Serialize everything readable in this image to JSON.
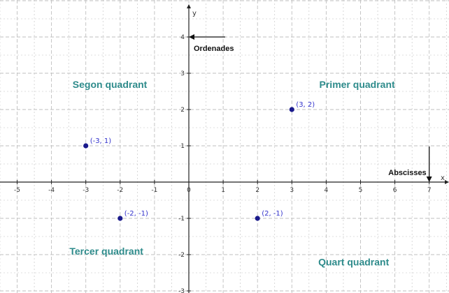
{
  "chart_data": {
    "type": "scatter",
    "xlim": [
      -5,
      7
    ],
    "ylim": [
      -3,
      4
    ],
    "grid": true,
    "x_ticks": [
      "-5",
      "-4",
      "-3",
      "-2",
      "-1",
      "0",
      "1",
      "2",
      "3",
      "4",
      "5",
      "6",
      "7"
    ],
    "y_ticks": [
      "-3",
      "-2",
      "-1",
      "1",
      "2",
      "3",
      "4"
    ],
    "x_axis_letter": "x",
    "y_axis_letter": "y",
    "points": [
      {
        "x": 3,
        "y": 2,
        "label": "(3, 2)"
      },
      {
        "x": -3,
        "y": 1,
        "label": "(-3, 1)"
      },
      {
        "x": -2,
        "y": -1,
        "label": "(-2, -1)"
      },
      {
        "x": 2,
        "y": -1,
        "label": "(2, -1)"
      }
    ],
    "quadrant_labels": [
      {
        "text": "Primer quadrant",
        "x": 4.9,
        "y": 2.6
      },
      {
        "text": "Segon quadrant",
        "x": -2.3,
        "y": 2.6
      },
      {
        "text": "Tercer quadrant",
        "x": -2.4,
        "y": -2.0
      },
      {
        "text": "Quart quadrant",
        "x": 4.8,
        "y": -2.3
      }
    ],
    "annotations": {
      "ordenades": "Ordenades",
      "abscisses": "Abscisses"
    },
    "colors": {
      "point": "#1a1a8c",
      "point_label": "#3333cc",
      "quadrant": "#2e8b8b",
      "grid": "#bfbfbf",
      "axis": "#222222"
    }
  }
}
